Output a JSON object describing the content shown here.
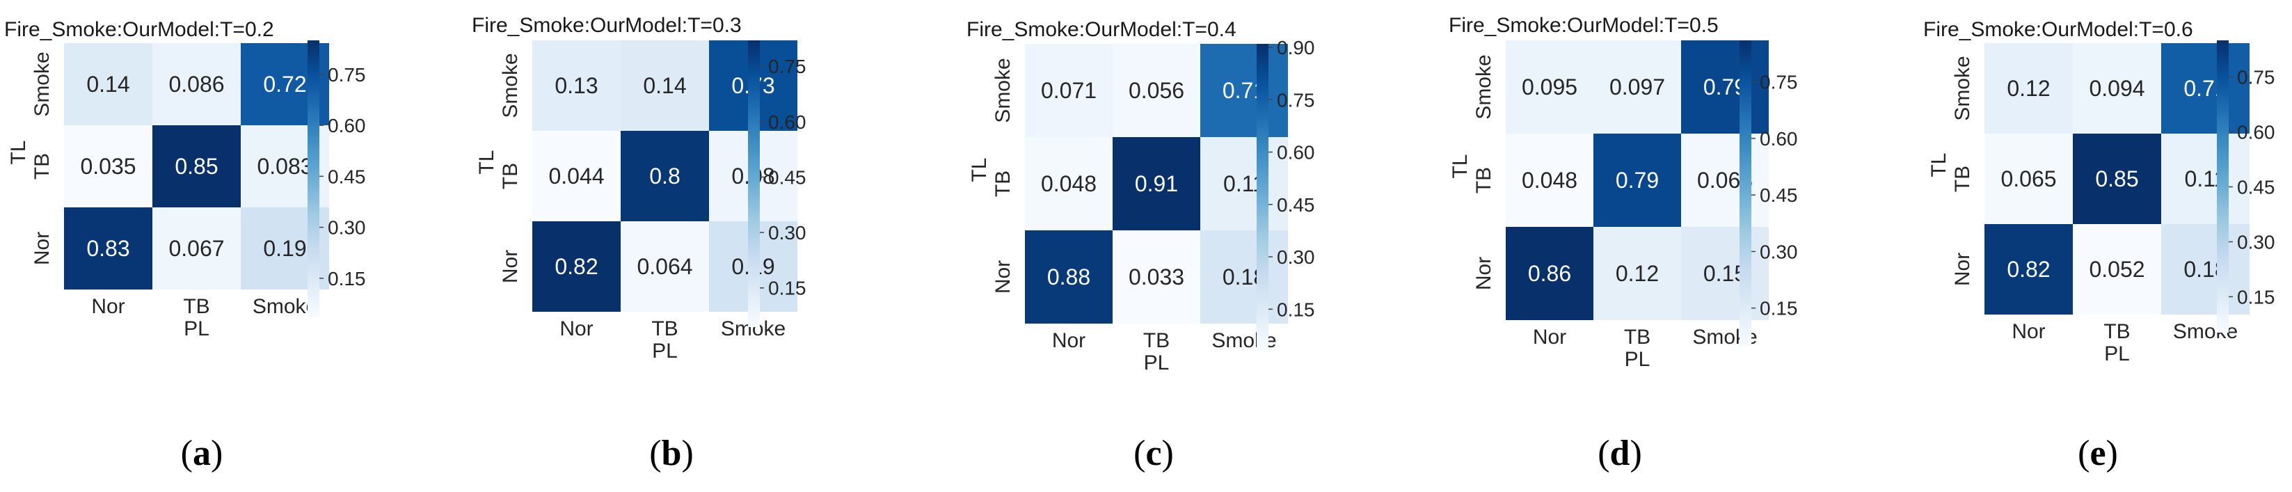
{
  "figure": {
    "captions": [
      "(a)",
      "(b)",
      "(c)",
      "(d)",
      "(e)"
    ],
    "caption_letters": [
      "a",
      "b",
      "c",
      "d",
      "e"
    ]
  },
  "colors": {
    "cmap": "Blues",
    "cbar_low": "#f7fbff",
    "cbar_high": "#08306b",
    "text_dark": "#262626",
    "text_light": "#ffffff"
  },
  "chart_data": [
    {
      "type": "heatmap",
      "title": "Fire_Smoke:OurModel:T=0.2",
      "xlabel": "PL",
      "ylabel": "TL",
      "x_ticks": [
        "Nor",
        "TB",
        "Smoke"
      ],
      "y_ticks": [
        "Smoke",
        "TB",
        "Nor"
      ],
      "values": [
        [
          0.14,
          0.086,
          0.72
        ],
        [
          0.035,
          0.85,
          0.083
        ],
        [
          0.83,
          0.067,
          0.19
        ]
      ],
      "labels": [
        [
          "0.14",
          "0.086",
          "0.72"
        ],
        [
          "0.035",
          "0.85",
          "0.083"
        ],
        [
          "0.83",
          "0.067",
          "0.19"
        ]
      ],
      "vmin": 0.035,
      "vmax": 0.85,
      "cbar_ticks": [
        "0.75",
        "0.60",
        "0.45",
        "0.30",
        "0.15"
      ],
      "cbar_tick_values": [
        0.75,
        0.6,
        0.45,
        0.3,
        0.15
      ]
    },
    {
      "type": "heatmap",
      "title": "Fire_Smoke:OurModel:T=0.3",
      "xlabel": "PL",
      "ylabel": "TL",
      "x_ticks": [
        "Nor",
        "TB",
        "Smoke"
      ],
      "y_ticks": [
        "Smoke",
        "TB",
        "Nor"
      ],
      "values": [
        [
          0.13,
          0.14,
          0.73
        ],
        [
          0.044,
          0.8,
          0.08
        ],
        [
          0.82,
          0.064,
          0.19
        ]
      ],
      "labels": [
        [
          "0.13",
          "0.14",
          "0.73"
        ],
        [
          "0.044",
          "0.8",
          "0.08"
        ],
        [
          "0.82",
          "0.064",
          "0.19"
        ]
      ],
      "vmin": 0.044,
      "vmax": 0.82,
      "cbar_ticks": [
        "0.75",
        "0.60",
        "0.45",
        "0.30",
        "0.15"
      ],
      "cbar_tick_values": [
        0.75,
        0.6,
        0.45,
        0.3,
        0.15
      ]
    },
    {
      "type": "heatmap",
      "title": "Fire_Smoke:OurModel:T=0.4",
      "xlabel": "PL",
      "ylabel": "TL",
      "x_ticks": [
        "Nor",
        "TB",
        "Smoke"
      ],
      "y_ticks": [
        "Smoke",
        "TB",
        "Nor"
      ],
      "values": [
        [
          0.071,
          0.056,
          0.71
        ],
        [
          0.048,
          0.91,
          0.11
        ],
        [
          0.88,
          0.033,
          0.18
        ]
      ],
      "labels": [
        [
          "0.071",
          "0.056",
          "0.71"
        ],
        [
          "0.048",
          "0.91",
          "0.11"
        ],
        [
          "0.88",
          "0.033",
          "0.18"
        ]
      ],
      "vmin": 0.033,
      "vmax": 0.91,
      "cbar_ticks": [
        "0.90",
        "0.75",
        "0.60",
        "0.45",
        "0.30",
        "0.15"
      ],
      "cbar_tick_values": [
        0.9,
        0.75,
        0.6,
        0.45,
        0.3,
        0.15
      ]
    },
    {
      "type": "heatmap",
      "title": "Fire_Smoke:OurModel:T=0.5",
      "xlabel": "PL",
      "ylabel": "TL",
      "x_ticks": [
        "Nor",
        "TB",
        "Smoke"
      ],
      "y_ticks": [
        "Smoke",
        "TB",
        "Nor"
      ],
      "values": [
        [
          0.095,
          0.097,
          0.79
        ],
        [
          0.048,
          0.79,
          0.068
        ],
        [
          0.86,
          0.12,
          0.15
        ]
      ],
      "labels": [
        [
          "0.095",
          "0.097",
          "0.79"
        ],
        [
          "0.048",
          "0.79",
          "0.068"
        ],
        [
          "0.86",
          "0.12",
          "0.15"
        ]
      ],
      "vmin": 0.048,
      "vmax": 0.86,
      "cbar_ticks": [
        "0.75",
        "0.60",
        "0.45",
        "0.30",
        "0.15"
      ],
      "cbar_tick_values": [
        0.75,
        0.6,
        0.45,
        0.3,
        0.15
      ]
    },
    {
      "type": "heatmap",
      "title": "Fire_Smoke:OurModel:T=0.6",
      "xlabel": "PL",
      "ylabel": "TL",
      "x_ticks": [
        "Nor",
        "TB",
        "Smoke"
      ],
      "y_ticks": [
        "Smoke",
        "TB",
        "Nor"
      ],
      "values": [
        [
          0.12,
          0.094,
          0.71
        ],
        [
          0.065,
          0.85,
          0.11
        ],
        [
          0.82,
          0.052,
          0.18
        ]
      ],
      "labels": [
        [
          "0.12",
          "0.094",
          "0.71"
        ],
        [
          "0.065",
          "0.85",
          "0.11"
        ],
        [
          "0.82",
          "0.052",
          "0.18"
        ]
      ],
      "vmin": 0.052,
      "vmax": 0.85,
      "cbar_ticks": [
        "0.75",
        "0.60",
        "0.45",
        "0.30",
        "0.15"
      ],
      "cbar_tick_values": [
        0.75,
        0.6,
        0.45,
        0.3,
        0.15
      ]
    }
  ]
}
